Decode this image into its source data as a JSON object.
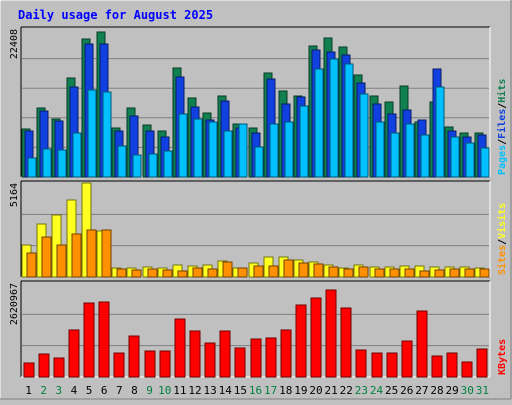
{
  "chart_data": {
    "type": "bar",
    "title": "Daily usage for August 2025",
    "x": [
      "1",
      "2",
      "3",
      "4",
      "5",
      "6",
      "7",
      "8",
      "9",
      "10",
      "11",
      "12",
      "13",
      "14",
      "15",
      "16",
      "17",
      "18",
      "19",
      "20",
      "21",
      "22",
      "23",
      "24",
      "25",
      "26",
      "27",
      "28",
      "29",
      "30",
      "31"
    ],
    "weekend_days": [
      "2",
      "3",
      "9",
      "10",
      "16",
      "17",
      "23",
      "24",
      "30",
      "31"
    ],
    "panels": [
      {
        "id": "hits-files-pages",
        "ymax_label": "22408",
        "ymax": 22408,
        "legend": [
          {
            "label": "Pages",
            "color": "#00c0ff"
          },
          {
            "label": "Files",
            "color": "#1040e0"
          },
          {
            "label": "Hits",
            "color": "#108050"
          }
        ],
        "series": [
          {
            "name": "Hits",
            "color": "#108050",
            "values": [
              7300,
              10500,
              8800,
              15000,
              20900,
              21900,
              7400,
              10500,
              7800,
              6900,
              16500,
              12000,
              9700,
              12300,
              8000,
              7400,
              15800,
              13000,
              12300,
              19900,
              21000,
              19700,
              15400,
              12300,
              11300,
              13800,
              8300,
              11400,
              7500,
              6700,
              6700
            ]
          },
          {
            "name": "Files",
            "color": "#1040e0",
            "values": [
              7000,
              10000,
              8500,
              13600,
              20200,
              20100,
              6900,
              9200,
              7000,
              6000,
              15100,
              10600,
              8700,
              11500,
              7400,
              6600,
              14900,
              11100,
              12100,
              19300,
              19000,
              18500,
              14200,
              11100,
              9600,
              10200,
              8700,
              16300,
              7000,
              6100,
              6400
            ]
          },
          {
            "name": "Pages",
            "color": "#00c0ff",
            "values": [
              2900,
              4200,
              4100,
              6700,
              13100,
              12800,
              4700,
              3300,
              3500,
              4000,
              9500,
              8800,
              8400,
              7000,
              8100,
              4500,
              8000,
              8300,
              10800,
              16300,
              17900,
              17100,
              12500,
              8400,
              6600,
              8100,
              6400,
              13700,
              6000,
              5200,
              4400
            ]
          }
        ]
      },
      {
        "id": "visits-sites",
        "ymax_label": "5164",
        "ymax": 5164,
        "legend": [
          {
            "label": "Sites",
            "color": "#ff9000"
          },
          {
            "label": "Visits",
            "color": "#ffff20"
          }
        ],
        "series": [
          {
            "name": "Visits",
            "color": "#ffff20",
            "values": [
              1770,
              2920,
              3430,
              4220,
              5164,
              2520,
              490,
              490,
              530,
              520,
              680,
              610,
              640,
              860,
              500,
              780,
              1100,
              1100,
              960,
              850,
              680,
              500,
              650,
              550,
              550,
              620,
              600,
              540,
              560,
              530,
              510
            ]
          },
          {
            "name": "Sites",
            "color": "#ff9000",
            "values": [
              1310,
              2170,
              1770,
              2350,
              2600,
              2560,
              460,
              390,
              430,
              360,
              350,
              490,
              450,
              820,
              490,
              590,
              580,
              950,
              750,
              690,
              530,
              430,
              560,
              460,
              460,
              460,
              330,
              380,
              420,
              450,
              460
            ]
          }
        ]
      },
      {
        "id": "kbytes",
        "ymax_label": "2620967",
        "ymax": 2620967,
        "legend": [
          {
            "label": "KBytes",
            "color": "#ff0000"
          }
        ],
        "series": [
          {
            "name": "KBytes",
            "color": "#ff0000",
            "values": [
              400000,
              630000,
              530000,
              1310000,
              2070000,
              2100000,
              670000,
              1150000,
              720000,
              720000,
              1610000,
              1280000,
              940000,
              1290000,
              800000,
              1070000,
              1080000,
              1310000,
              2010000,
              2190000,
              2425000,
              1930000,
              740000,
              670000,
              660000,
              990000,
              1830000,
              580000,
              660000,
              430000,
              780000
            ]
          }
        ]
      }
    ]
  }
}
